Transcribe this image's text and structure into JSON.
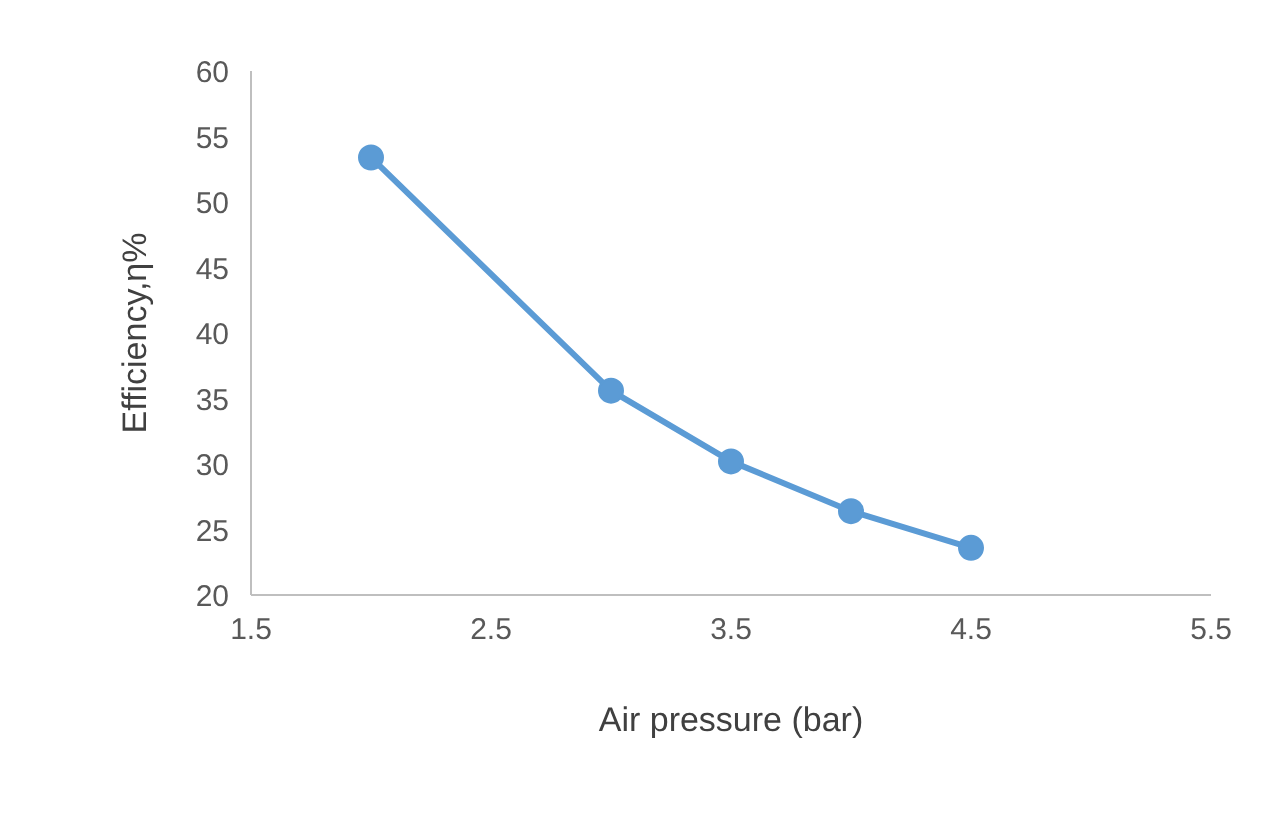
{
  "chart_data": {
    "type": "line",
    "xlabel": "Air pressure (bar)",
    "ylabel": "Efficiency,η%",
    "x": [
      2,
      3,
      3.5,
      4,
      4.5
    ],
    "series": [
      {
        "color": "#5b9bd5",
        "values": [
          53.4,
          35.6,
          30.2,
          26.4,
          23.6
        ]
      }
    ],
    "xlim": [
      1.5,
      5.5
    ],
    "xticks": [
      1.5,
      2.5,
      3.5,
      4.5,
      5.5
    ],
    "ylim": [
      20,
      60
    ],
    "yticks": [
      20,
      25,
      30,
      35,
      40,
      45,
      50,
      55,
      60
    ],
    "grid": false,
    "marker": "circle",
    "line_style": "solid"
  }
}
